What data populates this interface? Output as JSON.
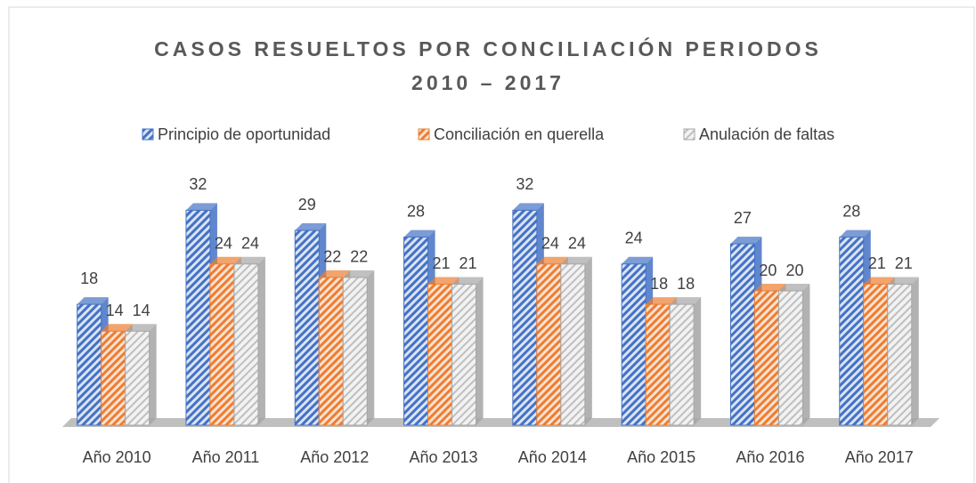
{
  "chart_data": {
    "type": "bar3d",
    "title": "CASOS RESUELTOS POR CONCILIACIÓN PERIODOS\n2010 – 2017",
    "categories": [
      "Año 2010",
      "Año 2011",
      "Año 2012",
      "Año 2013",
      "Año 2014",
      "Año 2015",
      "Año 2016",
      "Año 2017"
    ],
    "series": [
      {
        "name": "Principio de oportunidad",
        "color": "#4472c4",
        "values": [
          18,
          32,
          29,
          28,
          32,
          24,
          27,
          28
        ]
      },
      {
        "name": "Conciliación en querella",
        "color": "#ed7d31",
        "values": [
          14,
          24,
          22,
          21,
          24,
          18,
          20,
          21
        ]
      },
      {
        "name": "Anulación de faltas",
        "color": "#a5a5a5",
        "values": [
          14,
          24,
          22,
          21,
          24,
          18,
          20,
          21
        ]
      }
    ],
    "legend": "top"
  }
}
